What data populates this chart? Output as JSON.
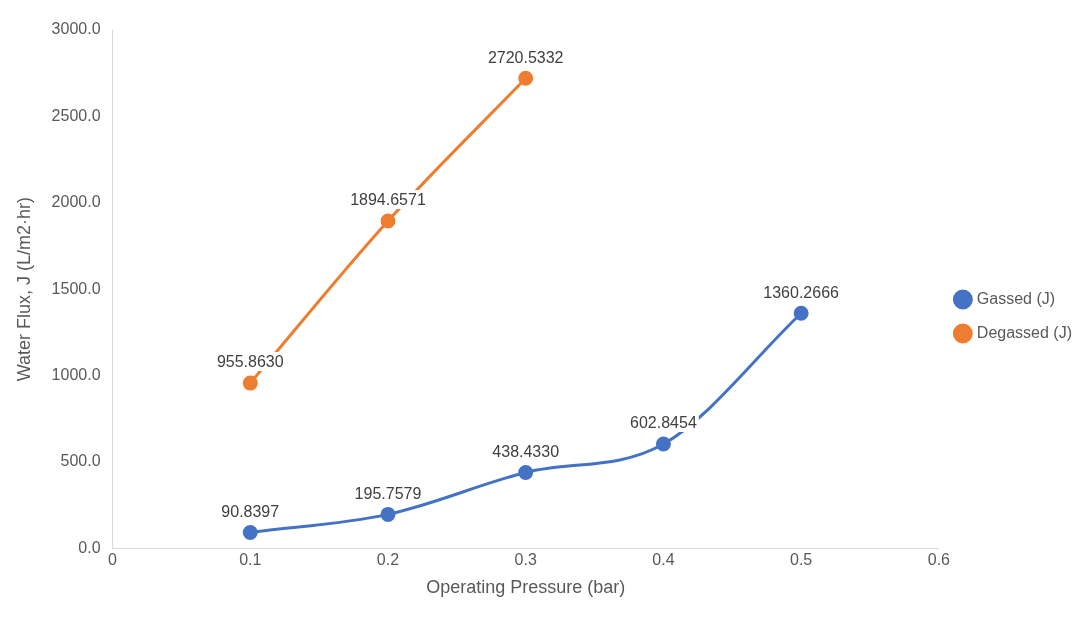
{
  "chart_data": {
    "type": "line",
    "xlabel": "Operating Pressure (bar)",
    "ylabel": "Water Flux, J (L/m2·hr)",
    "series": [
      {
        "name": "Gassed (J)",
        "color": "#4472c4",
        "x": [
          0.1,
          0.2,
          0.3,
          0.4,
          0.5
        ],
        "values": [
          90.8397,
          195.7579,
          438.433,
          602.8454,
          1360.2666
        ],
        "value_labels": [
          "90.8397",
          "195.7579",
          "438.4330",
          "602.8454",
          "1360.2666"
        ]
      },
      {
        "name": "Degassed (J)",
        "color": "#ed7d31",
        "x": [
          0.1,
          0.2,
          0.3
        ],
        "values": [
          955.863,
          1894.6571,
          2720.5332
        ],
        "value_labels": [
          "955.8630",
          "1894.6571",
          "2720.5332"
        ]
      }
    ],
    "xlim": [
      0,
      0.6
    ],
    "xticks": [
      0,
      0.1,
      0.2,
      0.3,
      0.4,
      0.5,
      0.6
    ],
    "ylim": [
      0,
      3000
    ],
    "yticks": [
      {
        "value": 0,
        "label": "0.0"
      },
      {
        "value": 500,
        "label": "500.0"
      },
      {
        "value": 1000,
        "label": "1000.0"
      },
      {
        "value": 1500,
        "label": "1500.0"
      },
      {
        "value": 2000,
        "label": "2000.0"
      },
      {
        "value": 2500,
        "label": "2500.0"
      },
      {
        "value": 3000,
        "label": "3000.0"
      }
    ],
    "grid": false,
    "legend": "right",
    "marker": "circle",
    "line_style": "solid"
  }
}
